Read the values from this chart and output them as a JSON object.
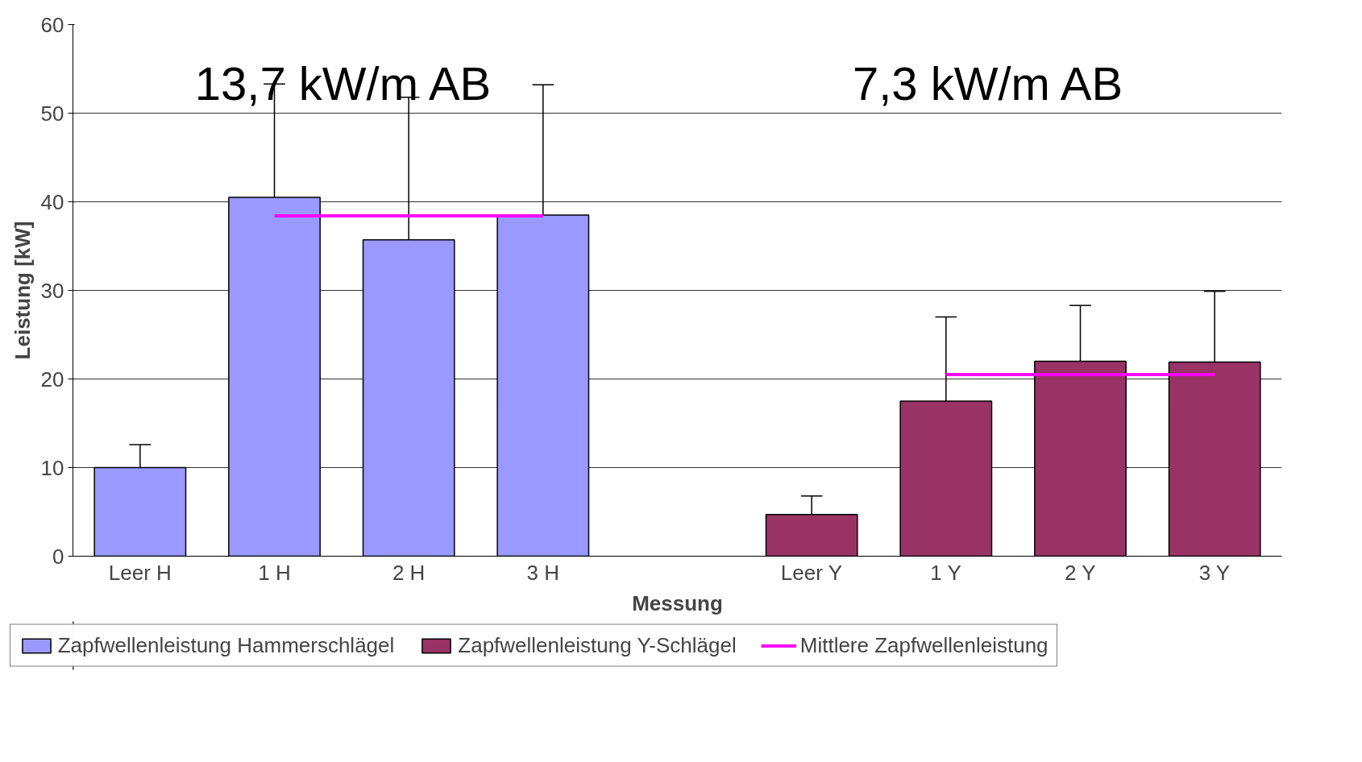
{
  "chart_data": {
    "type": "bar",
    "xlabel": "Messung",
    "ylabel": "Leistung [kW]",
    "categories": [
      "Leer H",
      "1 H",
      "2 H",
      "3 H",
      null,
      "Leer Y",
      "1 Y",
      "2 Y",
      "3 Y"
    ],
    "series": [
      {
        "name": "Zapfwellenleistung Hammerschlägel",
        "color": "#9999ff",
        "values": [
          10,
          40.5,
          35.7,
          38.5,
          null,
          null,
          null,
          null,
          null
        ],
        "errors": [
          [
            10,
            12.6
          ],
          [
            40.5,
            53.3
          ],
          [
            35.7,
            51.8
          ],
          [
            38.5,
            53.2
          ],
          null,
          null,
          null,
          null,
          null
        ]
      },
      {
        "name": "Zapfwellenleistung Y-Schlägel",
        "color": "#993366",
        "values": [
          null,
          null,
          null,
          null,
          null,
          4.7,
          17.5,
          22,
          21.9
        ],
        "errors": [
          null,
          null,
          null,
          null,
          null,
          [
            4.7,
            6.8
          ],
          [
            17.5,
            27
          ],
          [
            22,
            28.3
          ],
          [
            21.9,
            29.9
          ]
        ]
      },
      {
        "name": "Mittlere Zapfwellenleistung",
        "type": "line",
        "color": "#ff00ff",
        "values": [
          null,
          38.4,
          38.4,
          38.4,
          null,
          null,
          20.5,
          20.5,
          20.5
        ]
      }
    ],
    "annotations": [
      "13,7 kW/m AB",
      "7,3 kW/m AB"
    ],
    "ylim": [
      0,
      60
    ],
    "yticks": [
      0,
      10,
      20,
      30,
      40,
      50,
      60
    ],
    "grid": "y",
    "legend": "bottom"
  }
}
